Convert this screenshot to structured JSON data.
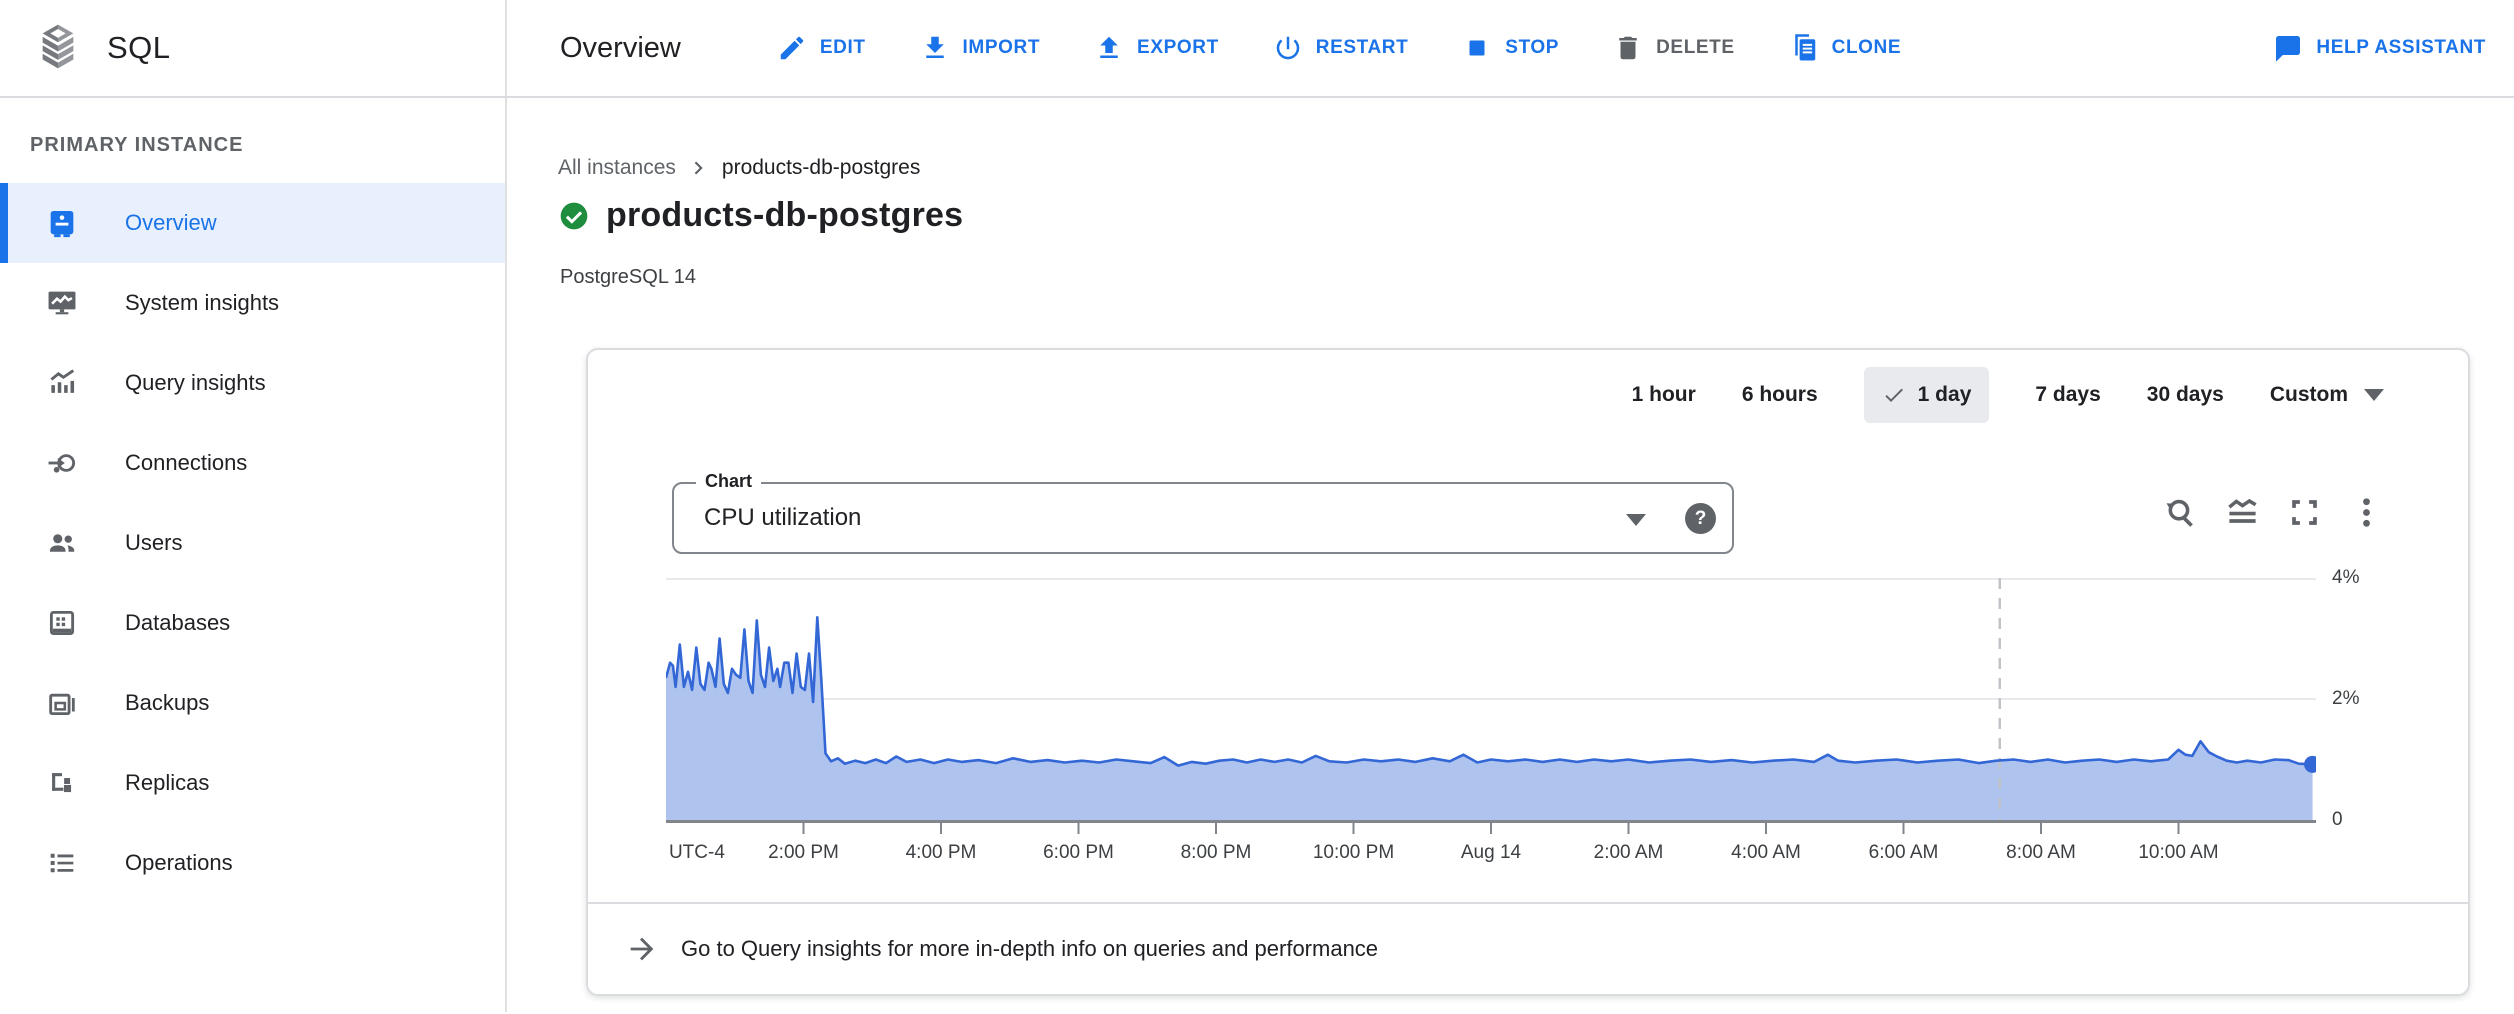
{
  "topbar": {
    "product": "SQL",
    "page_title": "Overview",
    "actions": [
      {
        "label": "EDIT",
        "icon": "edit-icon"
      },
      {
        "label": "IMPORT",
        "icon": "import-icon"
      },
      {
        "label": "EXPORT",
        "icon": "export-icon"
      },
      {
        "label": "RESTART",
        "icon": "restart-icon"
      },
      {
        "label": "STOP",
        "icon": "stop-icon"
      },
      {
        "label": "DELETE",
        "icon": "delete-icon",
        "disabled": true
      },
      {
        "label": "CLONE",
        "icon": "clone-icon"
      },
      {
        "label": "HELP ASSISTANT",
        "icon": "help-assistant-icon"
      }
    ]
  },
  "sidebar": {
    "section_label": "PRIMARY INSTANCE",
    "items": [
      {
        "label": "Overview",
        "icon": "overview-icon",
        "selected": true
      },
      {
        "label": "System insights",
        "icon": "system-insights-icon"
      },
      {
        "label": "Query insights",
        "icon": "query-insights-icon"
      },
      {
        "label": "Connections",
        "icon": "connections-icon"
      },
      {
        "label": "Users",
        "icon": "users-icon"
      },
      {
        "label": "Databases",
        "icon": "databases-icon"
      },
      {
        "label": "Backups",
        "icon": "backups-icon"
      },
      {
        "label": "Replicas",
        "icon": "replicas-icon"
      },
      {
        "label": "Operations",
        "icon": "operations-icon"
      }
    ]
  },
  "main": {
    "breadcrumb": {
      "parent": "All instances",
      "current": "products-db-postgres"
    },
    "instance": {
      "name": "products-db-postgres",
      "status": "running",
      "engine": "PostgreSQL 14"
    },
    "time_ranges": {
      "options": [
        "1 hour",
        "6 hours",
        "1 day",
        "7 days",
        "30 days",
        "Custom"
      ],
      "selected": "1 day"
    },
    "chart_selector": {
      "label": "Chart",
      "value": "CPU utilization",
      "help_glyph": "?"
    },
    "footer_link": "Go to Query insights for more in-depth info on queries and performance"
  },
  "chart_data": {
    "type": "area",
    "title": "CPU utilization",
    "ylabel": "CPU utilization (%)",
    "ylim": [
      0,
      4
    ],
    "x_range_hours": 24,
    "x_start": "12:00 PM Aug 13 (UTC-4)",
    "grid": true,
    "legend": "none",
    "now_marker_hour": 19.4,
    "colors": {
      "line": "#3367d6",
      "fill": "#aec4ef",
      "grid": "#e8eaed",
      "axis": "#80868b",
      "marker": "#c0c4c9"
    },
    "y_ticks": [
      {
        "label": "4%",
        "v": 4
      },
      {
        "label": "2%",
        "v": 2
      },
      {
        "label": "0",
        "v": 0
      }
    ],
    "x_ticks": [
      {
        "label": "UTC-4",
        "h": 0.45,
        "tick": false
      },
      {
        "label": "2:00 PM",
        "h": 2
      },
      {
        "label": "4:00 PM",
        "h": 4
      },
      {
        "label": "6:00 PM",
        "h": 6
      },
      {
        "label": "8:00 PM",
        "h": 8
      },
      {
        "label": "10:00 PM",
        "h": 10
      },
      {
        "label": "Aug 14",
        "h": 12
      },
      {
        "label": "2:00 AM",
        "h": 14
      },
      {
        "label": "4:00 AM",
        "h": 16
      },
      {
        "label": "6:00 AM",
        "h": 18
      },
      {
        "label": "8:00 AM",
        "h": 20
      },
      {
        "label": "10:00 AM",
        "h": 22
      }
    ],
    "series": [
      {
        "name": "CPU utilization",
        "unit": "%",
        "points": [
          [
            0.0,
            2.35
          ],
          [
            0.06,
            2.6
          ],
          [
            0.1,
            2.55
          ],
          [
            0.14,
            2.2
          ],
          [
            0.2,
            2.9
          ],
          [
            0.26,
            2.2
          ],
          [
            0.32,
            2.45
          ],
          [
            0.38,
            2.15
          ],
          [
            0.44,
            2.85
          ],
          [
            0.5,
            2.25
          ],
          [
            0.56,
            2.15
          ],
          [
            0.62,
            2.6
          ],
          [
            0.66,
            2.5
          ],
          [
            0.72,
            2.2
          ],
          [
            0.78,
            3.0
          ],
          [
            0.84,
            2.25
          ],
          [
            0.9,
            2.1
          ],
          [
            0.96,
            2.5
          ],
          [
            1.02,
            2.4
          ],
          [
            1.08,
            2.35
          ],
          [
            1.14,
            3.15
          ],
          [
            1.2,
            2.3
          ],
          [
            1.26,
            2.1
          ],
          [
            1.32,
            3.3
          ],
          [
            1.38,
            2.4
          ],
          [
            1.44,
            2.2
          ],
          [
            1.5,
            2.85
          ],
          [
            1.56,
            2.3
          ],
          [
            1.62,
            2.5
          ],
          [
            1.66,
            2.2
          ],
          [
            1.72,
            2.6
          ],
          [
            1.78,
            2.6
          ],
          [
            1.84,
            2.1
          ],
          [
            1.9,
            2.75
          ],
          [
            1.96,
            2.2
          ],
          [
            2.02,
            2.15
          ],
          [
            2.08,
            2.75
          ],
          [
            2.14,
            1.95
          ],
          [
            2.2,
            3.35
          ],
          [
            2.26,
            2.3
          ],
          [
            2.32,
            1.1
          ],
          [
            2.4,
            0.97
          ],
          [
            2.5,
            1.02
          ],
          [
            2.6,
            0.93
          ],
          [
            2.75,
            0.98
          ],
          [
            2.9,
            0.94
          ],
          [
            3.05,
            1.0
          ],
          [
            3.2,
            0.94
          ],
          [
            3.35,
            1.05
          ],
          [
            3.5,
            0.96
          ],
          [
            3.7,
            1.0
          ],
          [
            3.9,
            0.94
          ],
          [
            4.1,
            1.0
          ],
          [
            4.3,
            0.96
          ],
          [
            4.55,
            0.99
          ],
          [
            4.8,
            0.94
          ],
          [
            5.05,
            1.02
          ],
          [
            5.3,
            0.96
          ],
          [
            5.55,
            0.99
          ],
          [
            5.8,
            0.95
          ],
          [
            6.05,
            0.98
          ],
          [
            6.3,
            0.95
          ],
          [
            6.55,
            1.0
          ],
          [
            6.8,
            0.97
          ],
          [
            7.05,
            0.94
          ],
          [
            7.25,
            1.04
          ],
          [
            7.45,
            0.9
          ],
          [
            7.65,
            0.96
          ],
          [
            7.85,
            0.93
          ],
          [
            8.05,
            0.98
          ],
          [
            8.25,
            1.0
          ],
          [
            8.45,
            0.95
          ],
          [
            8.65,
            1.0
          ],
          [
            8.85,
            0.96
          ],
          [
            9.05,
            1.0
          ],
          [
            9.25,
            0.95
          ],
          [
            9.45,
            1.06
          ],
          [
            9.65,
            0.97
          ],
          [
            9.9,
            0.95
          ],
          [
            10.15,
            1.0
          ],
          [
            10.4,
            0.97
          ],
          [
            10.65,
            1.0
          ],
          [
            10.9,
            0.96
          ],
          [
            11.15,
            1.02
          ],
          [
            11.4,
            0.97
          ],
          [
            11.6,
            1.08
          ],
          [
            11.8,
            0.95
          ],
          [
            12.0,
            1.0
          ],
          [
            12.25,
            0.97
          ],
          [
            12.5,
            1.0
          ],
          [
            12.75,
            0.96
          ],
          [
            13.0,
            1.0
          ],
          [
            13.25,
            0.96
          ],
          [
            13.5,
            1.0
          ],
          [
            13.75,
            0.97
          ],
          [
            14.0,
            1.0
          ],
          [
            14.3,
            0.95
          ],
          [
            14.6,
            0.98
          ],
          [
            14.9,
            1.0
          ],
          [
            15.2,
            0.96
          ],
          [
            15.5,
            0.99
          ],
          [
            15.8,
            0.95
          ],
          [
            16.1,
            0.98
          ],
          [
            16.4,
            1.0
          ],
          [
            16.7,
            0.96
          ],
          [
            16.9,
            1.08
          ],
          [
            17.05,
            0.98
          ],
          [
            17.3,
            0.95
          ],
          [
            17.6,
            0.98
          ],
          [
            17.9,
            1.0
          ],
          [
            18.2,
            0.95
          ],
          [
            18.5,
            0.98
          ],
          [
            18.8,
            1.0
          ],
          [
            19.1,
            0.94
          ],
          [
            19.35,
            0.98
          ],
          [
            19.6,
            1.0
          ],
          [
            19.85,
            0.96
          ],
          [
            20.1,
            1.0
          ],
          [
            20.35,
            0.95
          ],
          [
            20.6,
            0.98
          ],
          [
            20.85,
            1.0
          ],
          [
            21.1,
            0.96
          ],
          [
            21.35,
            1.0
          ],
          [
            21.6,
            0.97
          ],
          [
            21.85,
            1.0
          ],
          [
            22.0,
            1.16
          ],
          [
            22.1,
            1.08
          ],
          [
            22.2,
            1.06
          ],
          [
            22.32,
            1.3
          ],
          [
            22.44,
            1.12
          ],
          [
            22.56,
            1.05
          ],
          [
            22.7,
            0.98
          ],
          [
            22.85,
            0.95
          ],
          [
            23.0,
            0.98
          ],
          [
            23.2,
            0.95
          ],
          [
            23.4,
            1.0
          ],
          [
            23.6,
            0.99
          ],
          [
            23.75,
            0.93
          ],
          [
            23.95,
            0.92
          ]
        ]
      }
    ]
  }
}
